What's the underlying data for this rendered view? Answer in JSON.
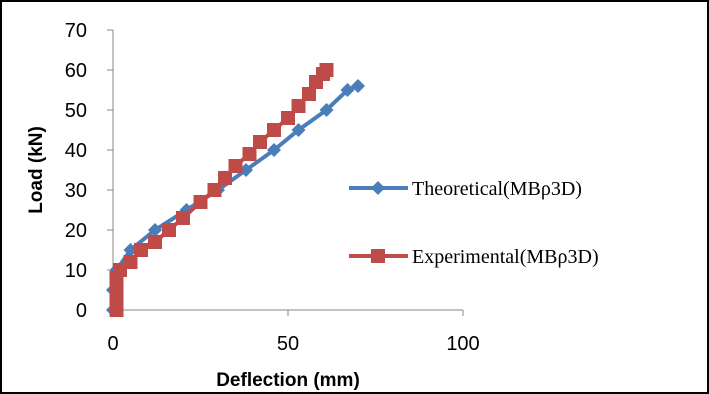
{
  "chart_data": {
    "type": "line",
    "xlabel": "Deflection (mm)",
    "ylabel": "Load (kN)",
    "xlim": [
      0,
      100
    ],
    "ylim": [
      0,
      70
    ],
    "x_ticks": [
      0,
      50,
      100
    ],
    "y_ticks": [
      0,
      10,
      20,
      30,
      40,
      50,
      60,
      70
    ],
    "grid": false,
    "legend_position": "right",
    "series": [
      {
        "name": "Theoretical(MBρ3D)",
        "color": "#4a7ebb",
        "marker": "diamond",
        "points": [
          [
            0,
            0
          ],
          [
            0,
            5
          ],
          [
            1,
            10
          ],
          [
            5,
            15
          ],
          [
            12,
            20
          ],
          [
            21,
            25
          ],
          [
            30,
            30
          ],
          [
            38,
            35
          ],
          [
            46,
            40
          ],
          [
            53,
            45
          ],
          [
            61,
            50
          ],
          [
            67,
            55
          ],
          [
            70,
            56
          ]
        ]
      },
      {
        "name": "Experimental(MBρ3D)",
        "color": "#be4b48",
        "marker": "square",
        "points": [
          [
            1,
            0
          ],
          [
            1,
            2
          ],
          [
            1,
            4
          ],
          [
            1,
            6
          ],
          [
            1,
            8
          ],
          [
            2,
            10
          ],
          [
            5,
            12
          ],
          [
            8,
            15
          ],
          [
            12,
            17
          ],
          [
            16,
            20
          ],
          [
            20,
            23
          ],
          [
            25,
            27
          ],
          [
            29,
            30
          ],
          [
            32,
            33
          ],
          [
            35,
            36
          ],
          [
            39,
            39
          ],
          [
            42,
            42
          ],
          [
            46,
            45
          ],
          [
            50,
            48
          ],
          [
            53,
            51
          ],
          [
            56,
            54
          ],
          [
            58,
            57
          ],
          [
            60,
            59
          ],
          [
            61,
            60
          ]
        ]
      }
    ]
  }
}
